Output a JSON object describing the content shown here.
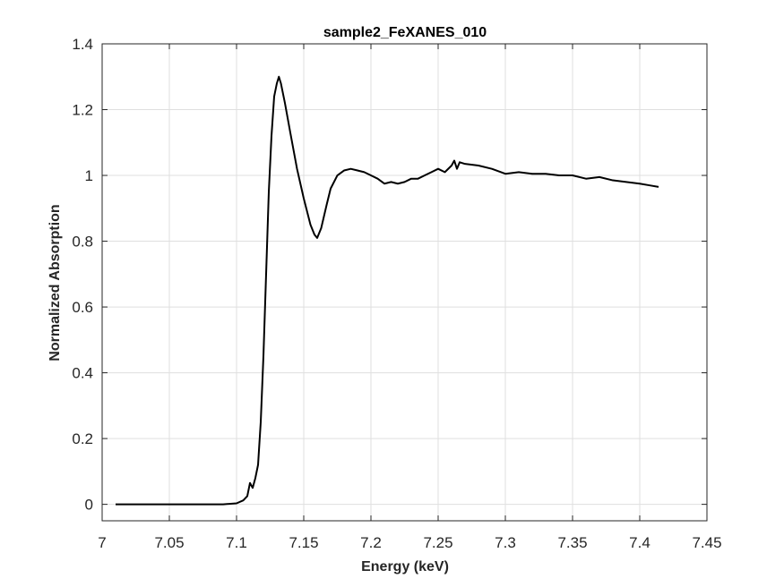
{
  "chart_data": {
    "type": "line",
    "title": "sample2_FeXANES_010",
    "xlabel": "Energy (keV)",
    "ylabel": "Normalized Absorption",
    "xlim": [
      7.0,
      7.45
    ],
    "ylim": [
      -0.05,
      1.4
    ],
    "xticks": [
      7,
      7.05,
      7.1,
      7.15,
      7.2,
      7.25,
      7.3,
      7.35,
      7.4,
      7.45
    ],
    "xtick_labels": [
      "7",
      "7.05",
      "7.1",
      "7.15",
      "7.2",
      "7.25",
      "7.3",
      "7.35",
      "7.4",
      "7.45"
    ],
    "yticks": [
      0,
      0.2,
      0.4,
      0.6,
      0.8,
      1.0,
      1.2,
      1.4
    ],
    "ytick_labels": [
      "0",
      "0.2",
      "0.4",
      "0.6",
      "0.8",
      "1",
      "1.2",
      "1.4"
    ],
    "grid": true,
    "legend": "none",
    "colors": {
      "line": "#000000",
      "grid": "#dfdfdf",
      "axes": "#262626"
    },
    "series": [
      {
        "x": [
          7.01,
          7.05,
          7.09,
          7.1,
          7.105,
          7.108,
          7.11,
          7.112,
          7.114,
          7.116,
          7.118,
          7.12,
          7.122,
          7.124,
          7.126,
          7.128,
          7.13,
          7.1315,
          7.133,
          7.136,
          7.14,
          7.145,
          7.15,
          7.155,
          7.158,
          7.16,
          7.163,
          7.167,
          7.17,
          7.175,
          7.18,
          7.185,
          7.19,
          7.195,
          7.2,
          7.205,
          7.21,
          7.215,
          7.22,
          7.225,
          7.23,
          7.235,
          7.24,
          7.245,
          7.25,
          7.255,
          7.26,
          7.262,
          7.264,
          7.266,
          7.27,
          7.28,
          7.29,
          7.3,
          7.31,
          7.32,
          7.33,
          7.34,
          7.35,
          7.36,
          7.37,
          7.38,
          7.39,
          7.4,
          7.407,
          7.414
        ],
        "y": [
          0.0,
          0.0,
          0.0,
          0.003,
          0.012,
          0.025,
          0.065,
          0.05,
          0.08,
          0.12,
          0.25,
          0.45,
          0.7,
          0.95,
          1.12,
          1.24,
          1.28,
          1.3,
          1.28,
          1.22,
          1.13,
          1.02,
          0.93,
          0.85,
          0.82,
          0.81,
          0.84,
          0.91,
          0.96,
          1.0,
          1.015,
          1.02,
          1.015,
          1.01,
          1.0,
          0.99,
          0.975,
          0.98,
          0.975,
          0.98,
          0.99,
          0.99,
          1.0,
          1.01,
          1.02,
          1.01,
          1.03,
          1.045,
          1.02,
          1.04,
          1.035,
          1.03,
          1.02,
          1.005,
          1.01,
          1.005,
          1.005,
          1.0,
          1.0,
          0.99,
          0.995,
          0.985,
          0.98,
          0.975,
          0.97,
          0.965
        ]
      }
    ]
  }
}
